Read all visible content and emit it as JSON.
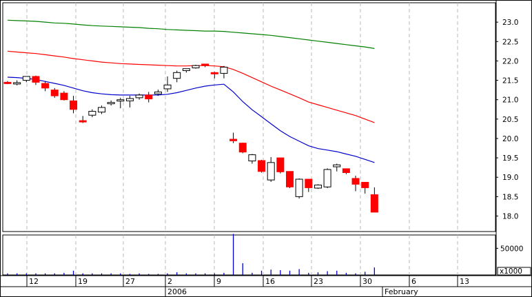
{
  "chart_data": {
    "type": "candlestick",
    "price_ylim": [
      17.6,
      23.5
    ],
    "price_ticks": [
      "23.0",
      "22.5",
      "22.0",
      "21.5",
      "21.0",
      "20.5",
      "20.0",
      "19.5",
      "19.0",
      "18.5",
      "18.0"
    ],
    "volume_tick": "50000",
    "volume_unit": "x1000",
    "volume_ylim": [
      0,
      75000
    ],
    "x_ticks": [
      "12",
      "19",
      "27",
      "2",
      "9",
      "16",
      "23",
      "30",
      "6",
      "13"
    ],
    "month_labels": [
      "2006",
      "February"
    ],
    "grid": true,
    "candles": [
      {
        "o": 21.45,
        "h": 21.48,
        "l": 21.4,
        "c": 21.42
      },
      {
        "o": 21.43,
        "h": 21.5,
        "l": 21.37,
        "c": 21.44
      },
      {
        "o": 21.5,
        "h": 21.6,
        "l": 21.45,
        "c": 21.6
      },
      {
        "o": 21.6,
        "h": 21.62,
        "l": 21.38,
        "c": 21.45
      },
      {
        "o": 21.42,
        "h": 21.48,
        "l": 21.22,
        "c": 21.3
      },
      {
        "o": 21.25,
        "h": 21.3,
        "l": 21.05,
        "c": 21.1
      },
      {
        "o": 21.17,
        "h": 21.22,
        "l": 20.98,
        "c": 21.0
      },
      {
        "o": 20.97,
        "h": 21.1,
        "l": 20.65,
        "c": 20.75
      },
      {
        "o": 20.46,
        "h": 20.58,
        "l": 20.4,
        "c": 20.44
      },
      {
        "o": 20.6,
        "h": 20.75,
        "l": 20.55,
        "c": 20.7
      },
      {
        "o": 20.68,
        "h": 20.85,
        "l": 20.63,
        "c": 20.8
      },
      {
        "o": 20.9,
        "h": 20.98,
        "l": 20.85,
        "c": 20.93
      },
      {
        "o": 20.97,
        "h": 21.05,
        "l": 20.78,
        "c": 21.0
      },
      {
        "o": 20.97,
        "h": 21.1,
        "l": 20.8,
        "c": 21.03
      },
      {
        "o": 21.05,
        "h": 21.16,
        "l": 21.0,
        "c": 21.12
      },
      {
        "o": 21.12,
        "h": 21.2,
        "l": 20.93,
        "c": 21.02
      },
      {
        "o": 21.15,
        "h": 21.26,
        "l": 21.1,
        "c": 21.2
      },
      {
        "o": 21.28,
        "h": 21.6,
        "l": 21.2,
        "c": 21.38
      },
      {
        "o": 21.55,
        "h": 21.75,
        "l": 21.45,
        "c": 21.7
      },
      {
        "o": 21.75,
        "h": 21.8,
        "l": 21.7,
        "c": 21.8
      },
      {
        "o": 21.82,
        "h": 21.9,
        "l": 21.8,
        "c": 21.88
      },
      {
        "o": 21.92,
        "h": 21.92,
        "l": 21.84,
        "c": 21.88
      },
      {
        "o": 21.7,
        "h": 21.72,
        "l": 21.55,
        "c": 21.67
      },
      {
        "o": 21.68,
        "h": 21.87,
        "l": 21.55,
        "c": 21.84
      },
      {
        "o": 19.98,
        "h": 20.15,
        "l": 19.88,
        "c": 19.94
      },
      {
        "o": 19.88,
        "h": 19.89,
        "l": 19.62,
        "c": 19.65
      },
      {
        "o": 19.42,
        "h": 19.6,
        "l": 19.35,
        "c": 19.58
      },
      {
        "o": 19.43,
        "h": 19.45,
        "l": 19.12,
        "c": 19.15
      },
      {
        "o": 18.93,
        "h": 19.52,
        "l": 18.88,
        "c": 19.38
      },
      {
        "o": 19.5,
        "h": 19.5,
        "l": 19.1,
        "c": 19.14
      },
      {
        "o": 19.15,
        "h": 19.15,
        "l": 18.72,
        "c": 18.75
      },
      {
        "o": 18.5,
        "h": 18.97,
        "l": 18.45,
        "c": 18.95
      },
      {
        "o": 18.95,
        "h": 18.95,
        "l": 18.62,
        "c": 18.73
      },
      {
        "o": 18.72,
        "h": 18.82,
        "l": 18.7,
        "c": 18.8
      },
      {
        "o": 18.75,
        "h": 19.23,
        "l": 18.72,
        "c": 19.2
      },
      {
        "o": 19.27,
        "h": 19.35,
        "l": 19.15,
        "c": 19.32
      },
      {
        "o": 19.22,
        "h": 19.22,
        "l": 19.08,
        "c": 19.12
      },
      {
        "o": 18.97,
        "h": 19.04,
        "l": 18.64,
        "c": 18.82
      },
      {
        "o": 18.87,
        "h": 18.87,
        "l": 18.58,
        "c": 18.73
      },
      {
        "o": 18.55,
        "h": 18.74,
        "l": 18.1,
        "c": 18.1
      }
    ],
    "volume": [
      3000,
      3000,
      3000,
      3000,
      3000,
      3000,
      4000,
      8000,
      3000,
      3000,
      3000,
      3000,
      3000,
      2000,
      3000,
      2000,
      2000,
      3000,
      5000,
      3000,
      3000,
      3000,
      3000,
      4000,
      77000,
      22000,
      4000,
      8000,
      10000,
      9000,
      8000,
      11000,
      4000,
      5000,
      7000,
      8000,
      4000,
      3000,
      6000,
      14000
    ],
    "series": [
      {
        "color": "#008000",
        "values": [
          23.05,
          23.04,
          23.03,
          23.02,
          23.0,
          22.98,
          22.97,
          22.95,
          22.93,
          22.91,
          22.9,
          22.89,
          22.88,
          22.87,
          22.86,
          22.84,
          22.83,
          22.81,
          22.8,
          22.79,
          22.78,
          22.77,
          22.77,
          22.76,
          22.74,
          22.72,
          22.7,
          22.68,
          22.66,
          22.63,
          22.6,
          22.57,
          22.54,
          22.51,
          22.48,
          22.45,
          22.42,
          22.39,
          22.36,
          22.32
        ]
      },
      {
        "color": "#ff0000",
        "values": [
          22.25,
          22.23,
          22.21,
          22.19,
          22.16,
          22.13,
          22.1,
          22.06,
          22.03,
          22.0,
          21.97,
          21.95,
          21.93,
          21.92,
          21.91,
          21.9,
          21.89,
          21.88,
          21.87,
          21.87,
          21.88,
          21.88,
          21.87,
          21.85,
          21.78,
          21.68,
          21.57,
          21.46,
          21.35,
          21.25,
          21.15,
          21.05,
          20.94,
          20.87,
          20.8,
          20.73,
          20.66,
          20.59,
          20.5,
          20.41
        ]
      },
      {
        "color": "#0000cc",
        "values": [
          21.58,
          21.57,
          21.55,
          21.52,
          21.47,
          21.42,
          21.37,
          21.3,
          21.23,
          21.18,
          21.15,
          21.13,
          21.12,
          21.12,
          21.12,
          21.12,
          21.12,
          21.14,
          21.18,
          21.24,
          21.3,
          21.35,
          21.38,
          21.4,
          21.2,
          20.95,
          20.74,
          20.56,
          20.38,
          20.2,
          20.05,
          19.93,
          19.81,
          19.74,
          19.7,
          19.66,
          19.6,
          19.54,
          19.46,
          19.38
        ]
      }
    ]
  }
}
